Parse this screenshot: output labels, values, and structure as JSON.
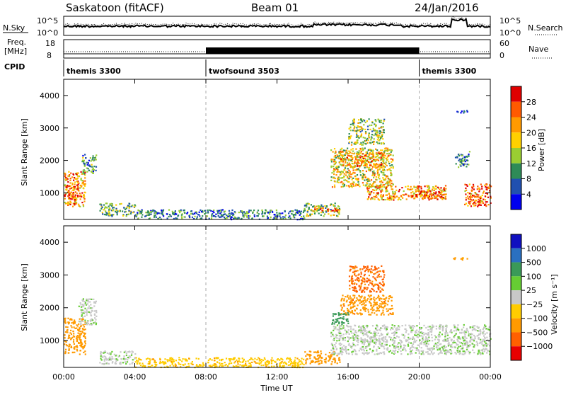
{
  "header": {
    "title": "Saskatoon (fitACF)",
    "beam": "Beam 01",
    "date": "24/Jan/2016"
  },
  "noise_panel": {
    "left_label": "N.Sky",
    "right_label": "N.Search",
    "ticks": [
      "10^5",
      "10^0"
    ]
  },
  "freq_panel": {
    "left_label_1": "Freq.",
    "left_label_2": "[MHz]",
    "right_label": "Nave",
    "left_ticks": [
      "18",
      "8"
    ],
    "right_ticks": [
      "60",
      "0"
    ]
  },
  "cpid_panel": {
    "label": "CPID",
    "segments": [
      {
        "name": "themis 3300",
        "start_hour": 0
      },
      {
        "name": "twofsound 3503",
        "start_hour": 8
      },
      {
        "name": "themis 3300",
        "start_hour": 20
      }
    ]
  },
  "power_colorbar": {
    "label": "Power [dB]",
    "ticks": [
      "28",
      "24",
      "20",
      "16",
      "12",
      "8",
      "4"
    ],
    "colors": [
      "#e00000",
      "#ff5a00",
      "#ff9a00",
      "#ffd000",
      "#9acd32",
      "#2e8b57",
      "#2050b0",
      "#0000ee"
    ]
  },
  "velocity_colorbar": {
    "label": "Velocity [m s⁻¹]",
    "ticks": [
      "1000",
      "500",
      "100",
      "25",
      "−25",
      "−100",
      "−500",
      "−1000"
    ],
    "colors": [
      "#1010c0",
      "#2a70c0",
      "#3a9a58",
      "#66cc33",
      "#c8c8c8",
      "#ffcc00",
      "#ff9a00",
      "#ff6000",
      "#e80000"
    ]
  },
  "chart_data": {
    "type": "heatmap",
    "xlabel": "Time UT",
    "ylabel": "Slant Range [km]",
    "x_range_hours": [
      0,
      24
    ],
    "x_ticks": [
      "00:00",
      "04:00",
      "08:00",
      "12:00",
      "16:00",
      "20:00",
      "00:00"
    ],
    "y_range": [
      180,
      4500
    ],
    "y_ticks": [
      "1000",
      "2000",
      "3000",
      "4000"
    ],
    "y_tick_values": [
      1000,
      2000,
      3000,
      4000
    ],
    "dashed_lines_hours": [
      8,
      20
    ],
    "power_regions": [
      {
        "t0": 0.0,
        "t1": 1.2,
        "r0": 600,
        "r1": 1700,
        "val": 22
      },
      {
        "t0": 0.2,
        "t1": 0.8,
        "r0": 800,
        "r1": 1300,
        "val": 28
      },
      {
        "t0": 1.0,
        "t1": 1.8,
        "r0": 1600,
        "r1": 2200,
        "val": 10
      },
      {
        "t0": 2.0,
        "t1": 4.0,
        "r0": 300,
        "r1": 700,
        "val": 12
      },
      {
        "t0": 4.0,
        "t1": 13.5,
        "r0": 200,
        "r1": 500,
        "val": 8
      },
      {
        "t0": 13.5,
        "t1": 15.5,
        "r0": 300,
        "r1": 700,
        "val": 14
      },
      {
        "t0": 14.0,
        "t1": 15.5,
        "r0": 450,
        "r1": 560,
        "val": 28
      },
      {
        "t0": 15.0,
        "t1": 18.5,
        "r0": 1200,
        "r1": 2400,
        "val": 18
      },
      {
        "t0": 15.5,
        "t1": 18.0,
        "r0": 1800,
        "r1": 2300,
        "val": 22
      },
      {
        "t0": 16.0,
        "t1": 18.0,
        "r0": 2500,
        "r1": 3300,
        "val": 14
      },
      {
        "t0": 17.0,
        "t1": 21.5,
        "r0": 800,
        "r1": 1250,
        "val": 22
      },
      {
        "t0": 19.5,
        "t1": 21.5,
        "r0": 850,
        "r1": 1150,
        "val": 28
      },
      {
        "t0": 22.5,
        "t1": 24.0,
        "r0": 600,
        "r1": 1300,
        "val": 26
      },
      {
        "t0": 22.0,
        "t1": 22.8,
        "r0": 1800,
        "r1": 2300,
        "val": 8
      },
      {
        "t0": 21.8,
        "t1": 22.7,
        "r0": 3480,
        "r1": 3560,
        "val": 4
      }
    ],
    "velocity_regions": [
      {
        "t0": 0.0,
        "t1": 1.2,
        "r0": 600,
        "r1": 1700,
        "val": -300
      },
      {
        "t0": 0.8,
        "t1": 1.8,
        "r0": 1500,
        "r1": 2300,
        "val": 20
      },
      {
        "t0": 2.0,
        "t1": 4.0,
        "r0": 300,
        "r1": 700,
        "val": 20
      },
      {
        "t0": 4.0,
        "t1": 13.5,
        "r0": 200,
        "r1": 500,
        "val": -80
      },
      {
        "t0": 13.5,
        "t1": 15.5,
        "r0": 300,
        "r1": 700,
        "val": -150
      },
      {
        "t0": 15.0,
        "t1": 24.0,
        "r0": 600,
        "r1": 1500,
        "val": 20
      },
      {
        "t0": 15.5,
        "t1": 18.5,
        "r0": 1800,
        "r1": 2400,
        "val": -400
      },
      {
        "t0": 16.0,
        "t1": 18.0,
        "r0": 2500,
        "r1": 3300,
        "val": -600
      },
      {
        "t0": 15.0,
        "t1": 16.0,
        "r0": 1500,
        "r1": 1900,
        "val": 150
      },
      {
        "t0": 21.8,
        "t1": 22.7,
        "r0": 3480,
        "r1": 3560,
        "val": -100
      }
    ]
  }
}
